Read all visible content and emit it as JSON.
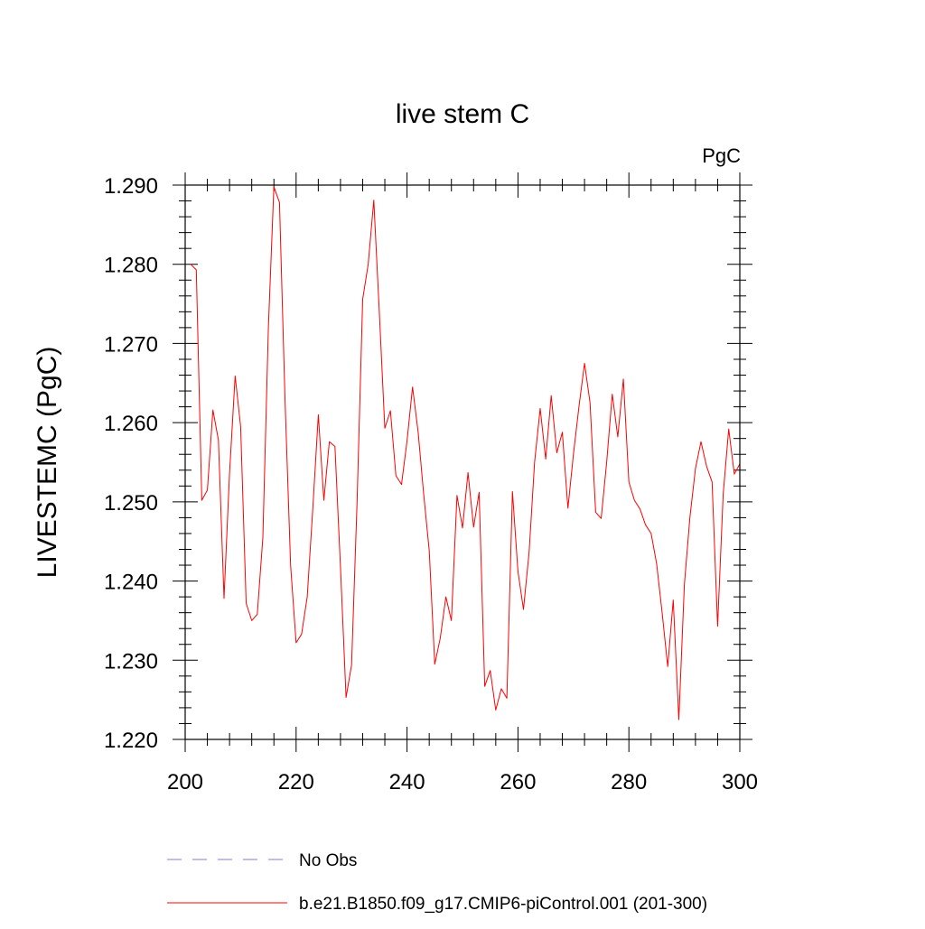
{
  "chart_data": {
    "type": "line",
    "title": "live stem C",
    "units": "PgC",
    "xlabel": "",
    "ylabel": "LIVESTEMC  (PgC)",
    "xlim": [
      200,
      300
    ],
    "ylim": [
      1.22,
      1.29
    ],
    "x_ticks": [
      "200",
      "220",
      "240",
      "260",
      "280",
      "300"
    ],
    "y_ticks": [
      "1.220",
      "1.230",
      "1.240",
      "1.250",
      "1.260",
      "1.270",
      "1.280",
      "1.290"
    ],
    "grid": false,
    "legend_position": "bottom",
    "series": [
      {
        "name": "b.e21.B1850.f09_g17.CMIP6-piControl.001 (201-300)",
        "color": "#ff0000",
        "style": "solid",
        "x": [
          201,
          202,
          203,
          204,
          205,
          206,
          207,
          208,
          209,
          210,
          211,
          212,
          213,
          214,
          215,
          216,
          217,
          218,
          219,
          220,
          221,
          222,
          223,
          224,
          225,
          226,
          227,
          228,
          229,
          230,
          231,
          232,
          233,
          234,
          235,
          236,
          237,
          238,
          239,
          240,
          241,
          242,
          243,
          244,
          245,
          246,
          247,
          248,
          249,
          250,
          251,
          252,
          253,
          254,
          255,
          256,
          257,
          258,
          259,
          260,
          261,
          262,
          263,
          264,
          265,
          266,
          267,
          268,
          269,
          270,
          271,
          272,
          273,
          274,
          275,
          276,
          277,
          278,
          279,
          280,
          281,
          282,
          283,
          284,
          285,
          286,
          287,
          288,
          289,
          290,
          291,
          292,
          293,
          294,
          295,
          296,
          297,
          298,
          299,
          300
        ],
        "values": [
          1.28,
          1.2793,
          1.2502,
          1.2515,
          1.2616,
          1.2578,
          1.2378,
          1.2536,
          1.2659,
          1.2595,
          1.2372,
          1.235,
          1.2358,
          1.2455,
          1.272,
          1.2898,
          1.2878,
          1.263,
          1.242,
          1.2322,
          1.2333,
          1.238,
          1.249,
          1.261,
          1.2502,
          1.2576,
          1.257,
          1.2418,
          1.2253,
          1.2294,
          1.25,
          1.2756,
          1.28,
          1.2881,
          1.274,
          1.2593,
          1.2615,
          1.2533,
          1.2522,
          1.2577,
          1.2645,
          1.2588,
          1.251,
          1.2438,
          1.2295,
          1.2328,
          1.238,
          1.235,
          1.2508,
          1.2467,
          1.2537,
          1.2468,
          1.2512,
          1.2267,
          1.2287,
          1.2237,
          1.2264,
          1.2252,
          1.2513,
          1.2412,
          1.2364,
          1.2436,
          1.255,
          1.2618,
          1.2554,
          1.2634,
          1.2562,
          1.2588,
          1.2492,
          1.256,
          1.262,
          1.2675,
          1.2625,
          1.2487,
          1.2479,
          1.255,
          1.2636,
          1.2582,
          1.2655,
          1.2525,
          1.2502,
          1.2491,
          1.2471,
          1.246,
          1.2422,
          1.236,
          1.2292,
          1.2376,
          1.2225,
          1.2395,
          1.248,
          1.2542,
          1.2576,
          1.2545,
          1.2525,
          1.2343,
          1.251,
          1.2592,
          1.2535,
          1.2548
        ]
      }
    ],
    "legend": [
      {
        "label": "No Obs",
        "color": "#8877cc",
        "style": "dashed"
      },
      {
        "label": "b.e21.B1850.f09_g17.CMIP6-piControl.001 (201-300)",
        "color": "#ff0000",
        "style": "solid"
      }
    ]
  }
}
